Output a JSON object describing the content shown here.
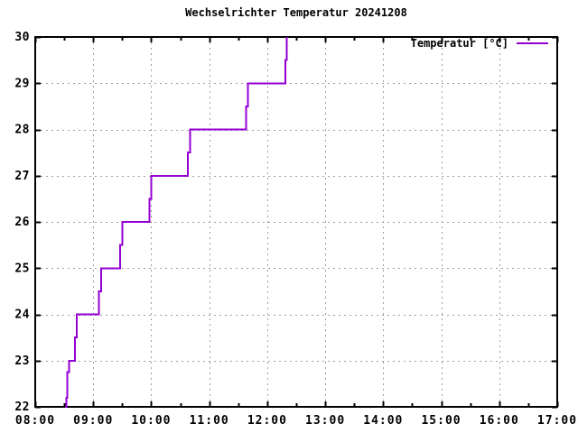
{
  "title": "Wechselrichter Temperatur 20241208",
  "legend": {
    "label": "Temperatur [°C]"
  },
  "colors": {
    "line": "#9400d3",
    "grid": "#9e9e9e",
    "axis": "#000000",
    "text": "#000000",
    "background": "#ffffff"
  },
  "chart_data": {
    "type": "line",
    "style": "steps",
    "title": "Wechselrichter Temperatur 20241208",
    "xlabel": "",
    "ylabel": "",
    "grid": "dotted",
    "legend_position": "top-right-inside",
    "x_axis": {
      "min": "08:00",
      "max": "17:00",
      "major_tick_labels": [
        "08:00",
        "09:00",
        "10:00",
        "11:00",
        "12:00",
        "13:00",
        "14:00",
        "15:00",
        "16:00",
        "17:00"
      ],
      "minor_ticks_per_major": 2
    },
    "y_axis": {
      "min": 22,
      "max": 30,
      "major_tick_labels": [
        "22",
        "23",
        "24",
        "25",
        "26",
        "27",
        "28",
        "29",
        "30"
      ]
    },
    "series": [
      {
        "name": "Temperatur [°C]",
        "color": "#9400d3",
        "points": [
          [
            "08:31",
            22.0
          ],
          [
            "08:32",
            22.2
          ],
          [
            "08:33",
            22.75
          ],
          [
            "08:35",
            23.0
          ],
          [
            "08:41",
            23.5
          ],
          [
            "08:43",
            24.0
          ],
          [
            "09:06",
            24.5
          ],
          [
            "09:08",
            25.0
          ],
          [
            "09:28",
            25.5
          ],
          [
            "09:30",
            26.0
          ],
          [
            "09:58",
            26.5
          ],
          [
            "10:00",
            27.0
          ],
          [
            "10:38",
            27.5
          ],
          [
            "10:40",
            28.0
          ],
          [
            "11:38",
            28.5
          ],
          [
            "11:40",
            29.0
          ],
          [
            "12:19",
            29.5
          ],
          [
            "12:20",
            30.0
          ]
        ]
      }
    ]
  }
}
